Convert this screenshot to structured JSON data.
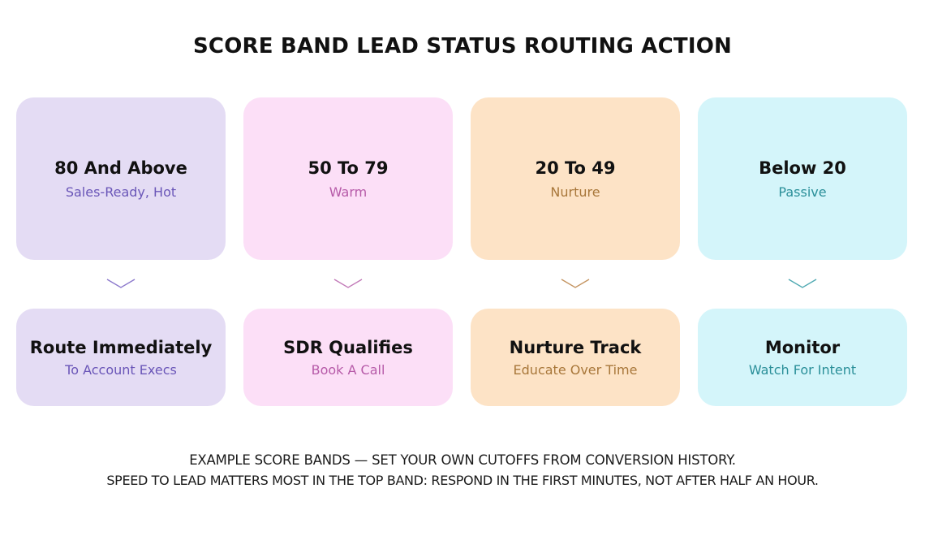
{
  "title": "SCORE BAND LEAD STATUS ROUTING ACTION",
  "colors": {
    "purple_bg": "#e4dcf4",
    "purple_text": "#6a56b8",
    "pink_bg": "#fcdff7",
    "pink_text": "#b65aa8",
    "orange_bg": "#fde3c6",
    "orange_text": "#a8773a",
    "cyan_bg": "#d4f5fa",
    "cyan_text": "#2a8f99"
  },
  "bands": [
    {
      "range": "80 And Above",
      "status": "Sales-Ready, Hot"
    },
    {
      "range": "50 To 79",
      "status": "Warm"
    },
    {
      "range": "20 To 49",
      "status": "Nurture"
    },
    {
      "range": "Below 20",
      "status": "Passive"
    }
  ],
  "actions": [
    {
      "title": "Route Immediately",
      "detail": "To Account Execs"
    },
    {
      "title": "SDR Qualifies",
      "detail": "Book A Call"
    },
    {
      "title": "Nurture Track",
      "detail": "Educate Over Time"
    },
    {
      "title": "Monitor",
      "detail": "Watch For Intent"
    }
  ],
  "arrows": [
    "chevron-down-icon",
    "chevron-down-icon",
    "chevron-down-icon",
    "chevron-down-icon"
  ],
  "footer": {
    "line1": "EXAMPLE SCORE BANDS — SET YOUR OWN CUTOFFS FROM CONVERSION HISTORY.",
    "line2": "SPEED TO LEAD MATTERS MOST IN THE TOP BAND: RESPOND IN THE FIRST MINUTES, NOT AFTER HALF AN HOUR."
  }
}
